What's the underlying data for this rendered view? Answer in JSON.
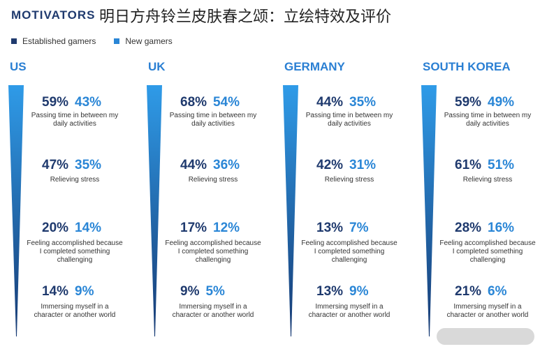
{
  "header": {
    "title": "MOTIVATORS",
    "overlay_title": "明日方舟铃兰皮肤春之颂：立绘特效及评价"
  },
  "legend": [
    {
      "label": "Established gamers",
      "color": "#1f3a6e"
    },
    {
      "label": "New gamers",
      "color": "#2a86d6"
    }
  ],
  "chart_data": {
    "type": "table",
    "title": "MOTIVATORS",
    "series": [
      {
        "name": "Established gamers",
        "color": "#1f3a6e"
      },
      {
        "name": "New gamers",
        "color": "#2a86d6"
      }
    ],
    "motivators": [
      {
        "label": "Passing time in between my daily activities"
      },
      {
        "label": "Relieving stress"
      },
      {
        "label": "Feeling accomplished because I completed something challenging"
      },
      {
        "label": "Immersing myself in a character or another world"
      }
    ],
    "countries": [
      {
        "name": "US",
        "values": [
          {
            "established": "59%",
            "new": "43%"
          },
          {
            "established": "47%",
            "new": "35%"
          },
          {
            "established": "20%",
            "new": "14%"
          },
          {
            "established": "14%",
            "new": "9%"
          }
        ]
      },
      {
        "name": "UK",
        "values": [
          {
            "established": "68%",
            "new": "54%"
          },
          {
            "established": "44%",
            "new": "36%"
          },
          {
            "established": "17%",
            "new": "12%"
          },
          {
            "established": "9%",
            "new": "5%"
          }
        ]
      },
      {
        "name": "GERMANY",
        "values": [
          {
            "established": "44%",
            "new": "35%"
          },
          {
            "established": "42%",
            "new": "31%"
          },
          {
            "established": "13%",
            "new": "7%"
          },
          {
            "established": "13%",
            "new": "9%"
          }
        ]
      },
      {
        "name": "SOUTH KOREA",
        "values": [
          {
            "established": "59%",
            "new": "49%"
          },
          {
            "established": "61%",
            "new": "51%"
          },
          {
            "established": "28%",
            "new": "16%"
          },
          {
            "established": "21%",
            "new": "6%"
          }
        ]
      }
    ]
  }
}
